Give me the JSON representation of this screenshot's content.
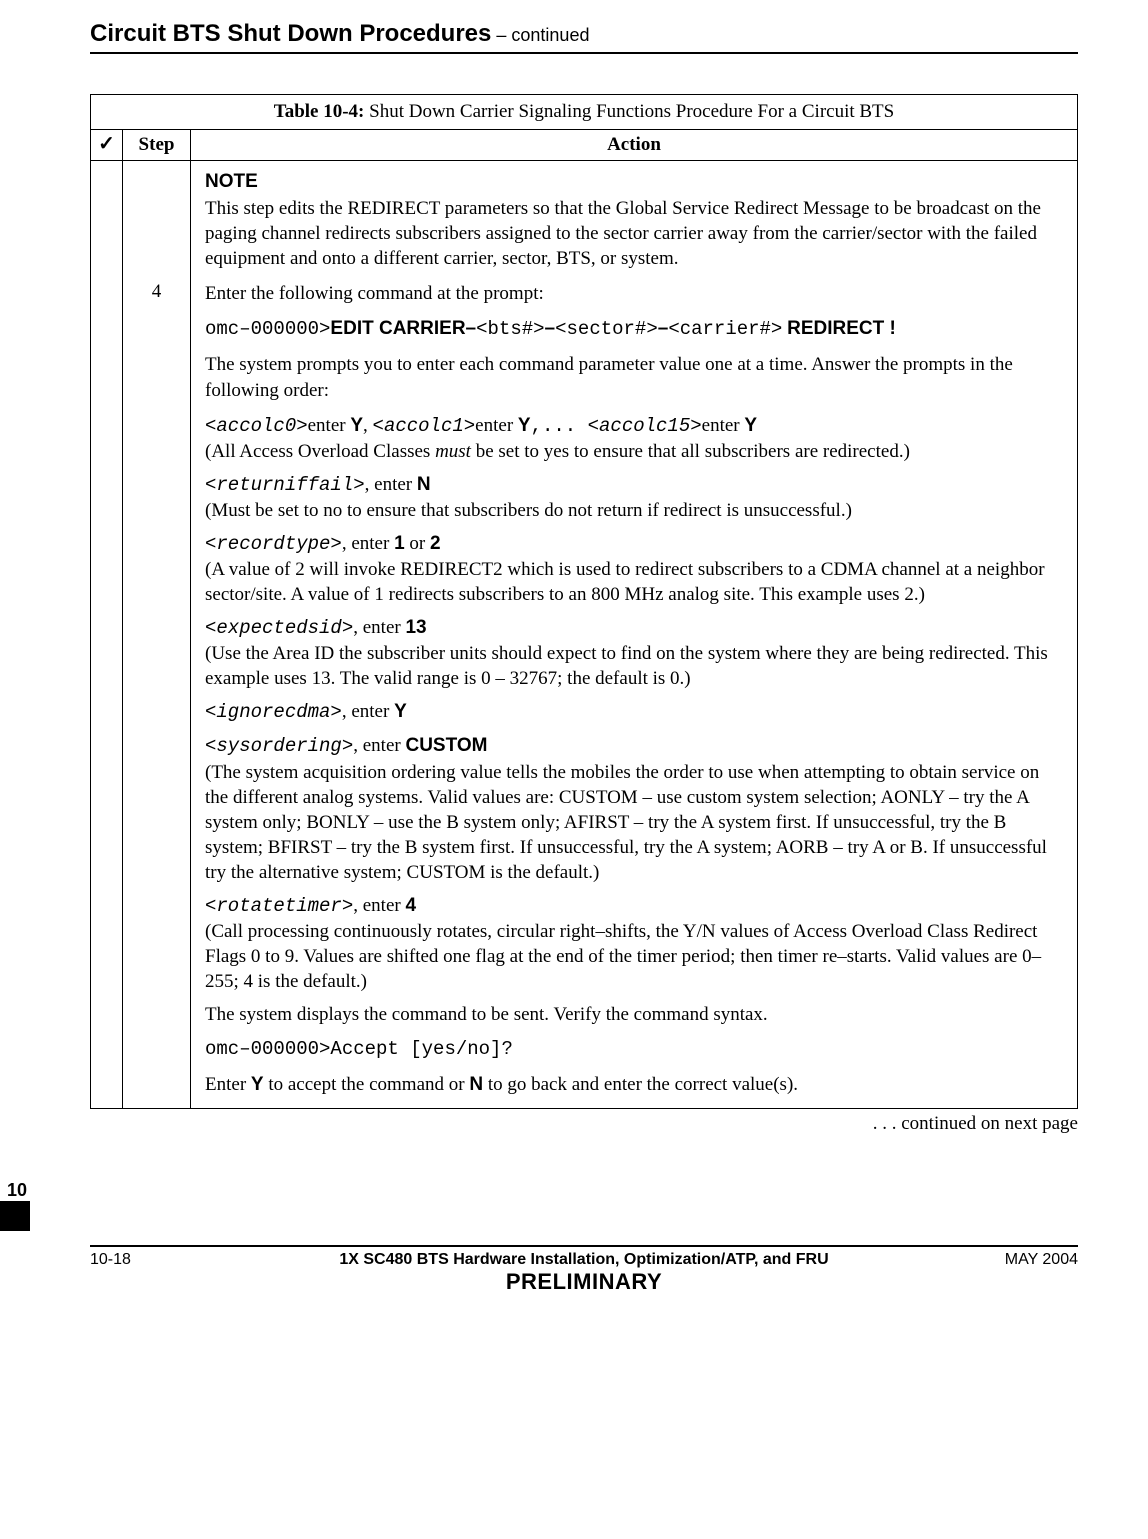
{
  "header": {
    "title": "Circuit BTS Shut Down Procedures",
    "continued": "  – continued"
  },
  "table": {
    "title_label": "Table 10-4: ",
    "title_text": "Shut Down Carrier Signaling Functions Procedure For a Circuit BTS",
    "col_check": "✓",
    "col_step": "Step",
    "col_action": "Action",
    "step_number": "4",
    "note_heading": "NOTE",
    "note_text": "This step edits the REDIRECT parameters so that the Global Service Redirect Message to be broadcast on the paging channel redirects subscribers assigned to the sector carrier away from the carrier/sector with the failed equipment and onto a different carrier, sector, BTS, or system.",
    "enter_cmd_text": "Enter the following command at the prompt:",
    "cmd": {
      "prefix": "omc–000000>",
      "edit_carrier": "EDIT CARRIER–",
      "bts": "<bts#>",
      "dash1": "–",
      "sector": "<sector#>",
      "dash2": "–",
      "carrier": "<carrier#>",
      "space": " ",
      "redirect": "REDIRECT !"
    },
    "prompts_intro": "The system prompts you to enter each command parameter value one at a time. Answer the prompts in the following order:",
    "accolc": {
      "p0": "<accolc0>",
      "t_enter1": "enter ",
      "Y1": "Y",
      "comma1": ", ",
      "p1": "<accolc1>",
      "t_enter2": "enter ",
      "Y2": " Y",
      "dots": ",... ",
      "p15": "<accolc15>",
      "t_enter3": "enter ",
      "Y3": " Y",
      "expl_open": "(All Access Overload Classes ",
      "expl_must": "must",
      "expl_close": " be set to yes to ensure that all subscribers are redirected.)"
    },
    "returniffail": {
      "tag": "<returniffail>",
      "enter": ", enter ",
      "val": "N",
      "expl": "(Must be set to no to ensure that subscribers do not return if redirect is unsuccessful.)"
    },
    "recordtype": {
      "tag": "<recordtype>",
      "enter": ", enter ",
      "val1": "1",
      "or": " or ",
      "val2": "2",
      "expl": "(A value of 2 will invoke REDIRECT2 which is used to redirect subscribers to a CDMA channel at a neighbor sector/site. A value of 1 redirects subscribers to an 800 MHz analog site. This example uses 2.)"
    },
    "expectedsid": {
      "tag": "<expectedsid>",
      "enter": ", enter ",
      "val": "13",
      "expl": "(Use the Area ID the subscriber units should expect to find on the system where they are being redirected. This example uses 13. The valid range is 0 – 32767; the default is 0.)"
    },
    "ignorecdma": {
      "tag": "<ignorecdma>",
      "enter": ", enter ",
      "val": "Y"
    },
    "sysordering": {
      "tag": "<sysordering>",
      "enter": ", enter ",
      "val": "CUSTOM",
      "expl": "(The system acquisition ordering value tells the mobiles the order to use when attempting to obtain service on the different analog systems. Valid values are: CUSTOM – use custom system selection; AONLY – try the A system only; BONLY – use the B system only; AFIRST – try the A system first. If unsuccessful, try the B system; BFIRST – try the B system first. If unsuccessful, try the A system; AORB – try A or B. If unsuccessful try the alternative system; CUSTOM is the default.)"
    },
    "rotatetimer": {
      "tag": "<rotatetimer>",
      "enter": ", enter ",
      "val": "4",
      "expl": "(Call processing continuously rotates, circular right–shifts, the Y/N values of Access Overload Class Redirect Flags 0 to 9. Values are shifted one flag at the end of the timer period; then timer re–starts. Valid values are 0–255; 4 is the default.)"
    },
    "verify_text": "The system displays the command to be sent. Verify the command syntax.",
    "accept_prompt": "omc–000000>Accept [yes/no]?",
    "final": {
      "pre": "Enter ",
      "Y": "Y",
      "mid": " to accept the command or ",
      "N": "N",
      "post": " to go back and enter the correct value(s)."
    }
  },
  "continued_note": ". . . continued on next page",
  "chapter_tab": "10",
  "footer": {
    "left": "10-18",
    "center1": "1X SC480 BTS Hardware Installation, Optimization/ATP, and FRU",
    "center2": "PRELIMINARY",
    "right": "MAY 2004"
  }
}
